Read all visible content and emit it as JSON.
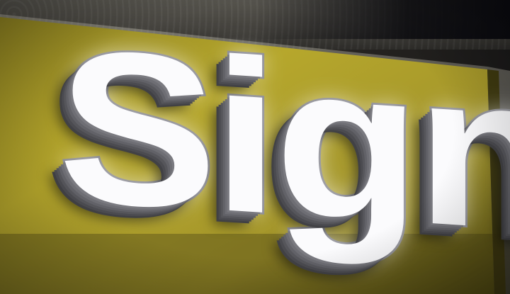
{
  "sign": {
    "text": "Sign"
  },
  "colors": {
    "board": "#b3a42a",
    "board_dark": "#6f6516",
    "letter_face": "#fbfbfd",
    "letter_side": "#55555a",
    "wall": "#4a4843"
  }
}
